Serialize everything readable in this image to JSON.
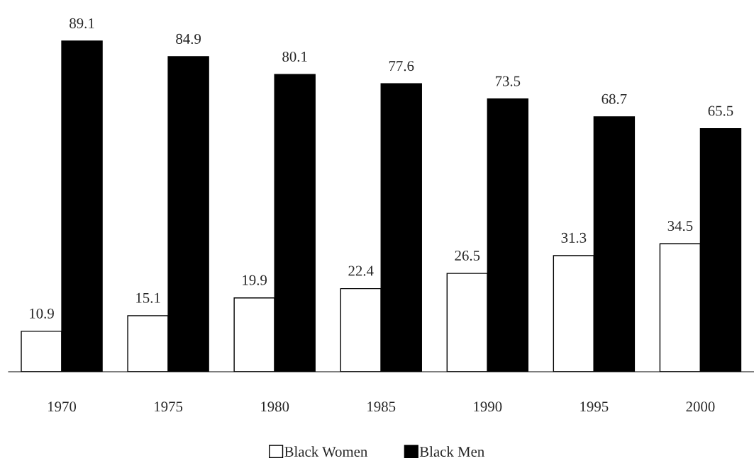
{
  "chart_data": {
    "type": "bar",
    "categories": [
      "1970",
      "1975",
      "1980",
      "1985",
      "1990",
      "1995",
      "2000"
    ],
    "series": [
      {
        "name": "Black Women",
        "color": "#ffffff",
        "values": [
          10.9,
          15.1,
          19.9,
          22.4,
          26.5,
          31.3,
          34.5
        ]
      },
      {
        "name": "Black Men",
        "color": "#000000",
        "values": [
          89.1,
          84.9,
          80.1,
          77.6,
          73.5,
          68.7,
          65.5
        ]
      }
    ],
    "data_labels": true,
    "legend": "bottom",
    "grid": false
  }
}
